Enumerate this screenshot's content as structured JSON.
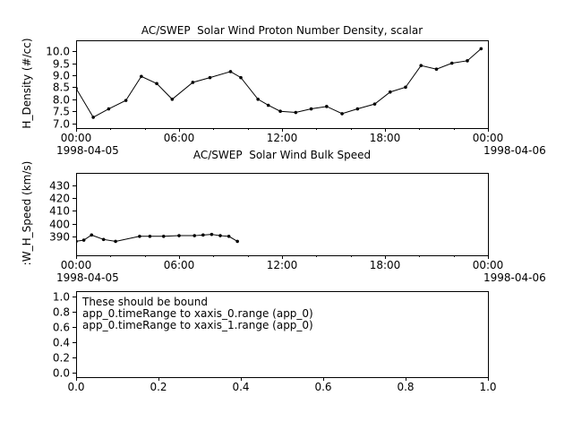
{
  "app": {
    "background": "#ffffff",
    "foreground": "#000000"
  },
  "chart_data": [
    {
      "type": "line",
      "title": "AC/SWEP  Solar Wind Proton Number Density, scalar",
      "ylabel": "H_Density (#/cc)",
      "x_axis_note": "time in hours after 1998-04-05 00:00",
      "x": [
        0,
        1.0,
        1.9,
        2.9,
        3.8,
        4.7,
        5.6,
        6.8,
        7.8,
        9.0,
        9.6,
        10.6,
        11.2,
        11.9,
        12.8,
        13.7,
        14.6,
        15.5,
        16.4,
        17.4,
        18.3,
        19.2,
        20.1,
        21.0,
        21.9,
        22.8,
        23.6
      ],
      "y": [
        8.45,
        7.25,
        7.6,
        7.95,
        8.95,
        8.65,
        8.0,
        8.7,
        8.9,
        9.15,
        8.9,
        8.0,
        7.75,
        7.5,
        7.45,
        7.6,
        7.7,
        7.4,
        7.6,
        7.8,
        8.3,
        8.5,
        9.4,
        9.25,
        9.5,
        9.6,
        10.1
      ],
      "xlim": [
        0,
        24
      ],
      "ylim": [
        6.8,
        10.45
      ],
      "xticks": [
        0,
        6,
        12,
        18,
        24
      ],
      "xtick_labels": [
        "00:00",
        "06:00",
        "12:00",
        "18:00",
        "00:00"
      ],
      "x_minor_step": 2,
      "yticks": [
        7.0,
        7.5,
        8.0,
        8.5,
        9.0,
        9.5,
        10.0
      ],
      "ytick_labels": [
        "7.0",
        "7.5",
        "8.0",
        "8.5",
        "9.0",
        "9.5",
        "10.0"
      ],
      "date_left": "1998-04-05",
      "date_right": "1998-04-06",
      "line_color": "#000000",
      "marker": "filled-circle"
    },
    {
      "type": "line",
      "title": "AC/SWEP  Solar Wind Bulk Speed",
      "ylabel": ":W_H_Speed (km/s)",
      "x_axis_note": "time in hours after 1998-04-05 00:00",
      "x": [
        0,
        0.45,
        0.9,
        1.6,
        2.3,
        3.7,
        4.3,
        5.1,
        6.0,
        6.9,
        7.4,
        7.9,
        8.4,
        8.9,
        9.4
      ],
      "y": [
        386,
        387,
        391,
        387.5,
        386,
        390,
        390,
        390,
        390.5,
        390.5,
        391,
        391.5,
        390.5,
        390,
        386
      ],
      "xlim": [
        0,
        24
      ],
      "ylim": [
        375,
        440
      ],
      "xticks": [
        0,
        6,
        12,
        18,
        24
      ],
      "xtick_labels": [
        "00:00",
        "06:00",
        "12:00",
        "18:00",
        "00:00"
      ],
      "x_minor_step": 2,
      "yticks": [
        390,
        400,
        410,
        420,
        430
      ],
      "ytick_labels": [
        "390",
        "400",
        "410",
        "420",
        "430"
      ],
      "date_left": "1998-04-05",
      "date_right": "1998-04-06",
      "line_color": "#000000",
      "marker": "filled-circle"
    },
    {
      "type": "line",
      "title": "",
      "ylabel": "",
      "x": [],
      "y": [],
      "xlim": [
        0,
        1
      ],
      "ylim": [
        -0.06,
        1.07
      ],
      "xticks": [
        0,
        0.2,
        0.4,
        0.6,
        0.8,
        1.0
      ],
      "xtick_labels": [
        "0.0",
        "0.2",
        "0.4",
        "0.6",
        "0.8",
        "1.0"
      ],
      "yticks": [
        0,
        0.2,
        0.4,
        0.6,
        0.8,
        1.0
      ],
      "ytick_labels": [
        "0.0",
        "0.2",
        "0.4",
        "0.6",
        "0.8",
        "1.0"
      ],
      "annotations": [
        "These should be bound",
        "app_0.timeRange to xaxis_0.range (app_0)",
        "app_0.timeRange to xaxis_1.range (app_0)"
      ],
      "line_color": "#000000"
    }
  ]
}
